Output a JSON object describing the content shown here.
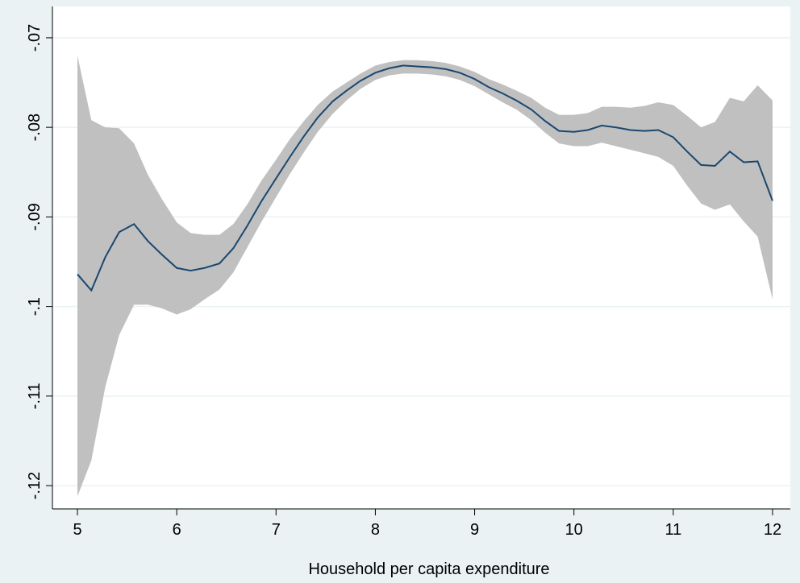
{
  "chart_data": {
    "type": "line",
    "x_label": "Household per capita expenditure",
    "x": [
      5,
      5.14,
      5.28,
      5.42,
      5.57,
      5.71,
      5.85,
      6,
      6.14,
      6.28,
      6.43,
      6.57,
      6.71,
      6.85,
      7,
      7.14,
      7.28,
      7.42,
      7.57,
      7.71,
      7.85,
      8,
      8.14,
      8.28,
      8.42,
      8.57,
      8.71,
      8.85,
      9,
      9.14,
      9.28,
      9.42,
      9.57,
      9.71,
      9.85,
      10,
      10.14,
      10.28,
      10.42,
      10.57,
      10.71,
      10.85,
      11,
      11.14,
      11.28,
      11.42,
      11.57,
      11.71,
      11.85,
      12
    ],
    "values": [
      -0.0964,
      -0.0982,
      -0.0945,
      -0.0917,
      -0.0908,
      -0.0927,
      -0.0942,
      -0.0957,
      -0.096,
      -0.0957,
      -0.0952,
      -0.0935,
      -0.091,
      -0.0883,
      -0.0857,
      -0.0833,
      -0.081,
      -0.0789,
      -0.0771,
      -0.0759,
      -0.0748,
      -0.0739,
      -0.0734,
      -0.0731,
      -0.0732,
      -0.0733,
      -0.0735,
      -0.0739,
      -0.0746,
      -0.0755,
      -0.0762,
      -0.077,
      -0.078,
      -0.0793,
      -0.0804,
      -0.0805,
      -0.0803,
      -0.0798,
      -0.08,
      -0.0803,
      -0.0804,
      -0.0803,
      -0.0811,
      -0.0827,
      -0.0842,
      -0.0843,
      -0.0827,
      -0.0839,
      -0.0838,
      -0.0882
    ],
    "color": "#1a476f",
    "upper": [
      -0.072,
      -0.0792,
      -0.08,
      -0.0801,
      -0.0818,
      -0.0853,
      -0.088,
      -0.0906,
      -0.0918,
      -0.092,
      -0.092,
      -0.0908,
      -0.0886,
      -0.086,
      -0.0836,
      -0.0813,
      -0.0793,
      -0.0775,
      -0.076,
      -0.075,
      -0.074,
      -0.0731,
      -0.0727,
      -0.0725,
      -0.0725,
      -0.0726,
      -0.0728,
      -0.0732,
      -0.0738,
      -0.0746,
      -0.0752,
      -0.0759,
      -0.0767,
      -0.0778,
      -0.0786,
      -0.0786,
      -0.0784,
      -0.0777,
      -0.0777,
      -0.0778,
      -0.0776,
      -0.0772,
      -0.0775,
      -0.0787,
      -0.08,
      -0.0794,
      -0.0767,
      -0.0771,
      -0.0753,
      -0.077
    ],
    "lower": [
      -0.1212,
      -0.1172,
      -0.109,
      -0.1032,
      -0.0998,
      -0.0998,
      -0.1002,
      -0.1009,
      -0.1003,
      -0.0992,
      -0.0981,
      -0.0962,
      -0.0934,
      -0.0906,
      -0.0878,
      -0.0852,
      -0.0828,
      -0.0805,
      -0.0785,
      -0.077,
      -0.0757,
      -0.0747,
      -0.0742,
      -0.074,
      -0.074,
      -0.0741,
      -0.0743,
      -0.0747,
      -0.0754,
      -0.0763,
      -0.0772,
      -0.078,
      -0.0792,
      -0.0806,
      -0.0818,
      -0.0821,
      -0.0821,
      -0.0817,
      -0.0821,
      -0.0825,
      -0.0829,
      -0.0833,
      -0.0843,
      -0.0865,
      -0.0885,
      -0.0892,
      -0.0886,
      -0.0905,
      -0.0922,
      -0.0992
    ],
    "band_color": "#c0c0c0",
    "xlim": [
      4.748,
      12.179
    ],
    "xticks": [
      5,
      6,
      7,
      8,
      9,
      10,
      11,
      12
    ],
    "ylim": [
      -0.1226,
      -0.0665
    ],
    "yticks": [
      {
        "value": -0.12,
        "label": "-.12"
      },
      {
        "value": -0.11,
        "label": "-.11"
      },
      {
        "value": -0.1,
        "label": "-.1"
      },
      {
        "value": -0.09,
        "label": "-.09"
      },
      {
        "value": -0.08,
        "label": "-.08"
      },
      {
        "value": -0.07,
        "label": "-.07"
      }
    ],
    "grid": true
  }
}
